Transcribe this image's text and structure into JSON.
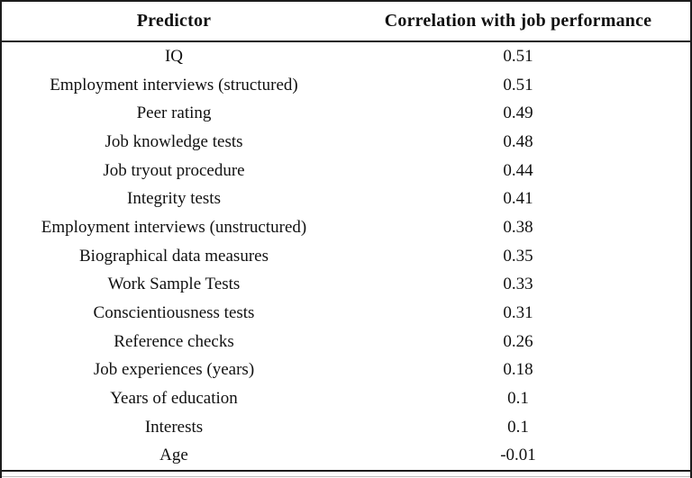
{
  "colors": {
    "border": "#1c1c1c",
    "background": "#ffffff",
    "text": "#111111"
  },
  "table": {
    "headers": [
      "Predictor",
      "Correlation with job performance"
    ],
    "rows": [
      {
        "predictor": "IQ",
        "correlation": "0.51"
      },
      {
        "predictor": "Employment interviews (structured)",
        "correlation": "0.51"
      },
      {
        "predictor": "Peer rating",
        "correlation": "0.49"
      },
      {
        "predictor": "Job knowledge tests",
        "correlation": "0.48"
      },
      {
        "predictor": "Job tryout procedure",
        "correlation": "0.44"
      },
      {
        "predictor": "Integrity tests",
        "correlation": "0.41"
      },
      {
        "predictor": "Employment interviews (unstructured)",
        "correlation": "0.38"
      },
      {
        "predictor": "Biographical data measures",
        "correlation": "0.35"
      },
      {
        "predictor": "Work Sample Tests",
        "correlation": "0.33"
      },
      {
        "predictor": "Conscientiousness tests",
        "correlation": "0.31"
      },
      {
        "predictor": "Reference checks",
        "correlation": "0.26"
      },
      {
        "predictor": "Job experiences (years)",
        "correlation": "0.18"
      },
      {
        "predictor": "Years of education",
        "correlation": "0.1"
      },
      {
        "predictor": "Interests",
        "correlation": "0.1"
      },
      {
        "predictor": "Age",
        "correlation": "-0.01"
      }
    ]
  },
  "chart_data": {
    "type": "table",
    "title": "",
    "columns": [
      "Predictor",
      "Correlation with job performance"
    ],
    "categories": [
      "IQ",
      "Employment interviews (structured)",
      "Peer rating",
      "Job knowledge tests",
      "Job tryout procedure",
      "Integrity tests",
      "Employment interviews (unstructured)",
      "Biographical data measures",
      "Work Sample Tests",
      "Conscientiousness tests",
      "Reference checks",
      "Job experiences (years)",
      "Years of education",
      "Interests",
      "Age"
    ],
    "values": [
      0.51,
      0.51,
      0.49,
      0.48,
      0.44,
      0.41,
      0.38,
      0.35,
      0.33,
      0.31,
      0.26,
      0.18,
      0.1,
      0.1,
      -0.01
    ]
  }
}
